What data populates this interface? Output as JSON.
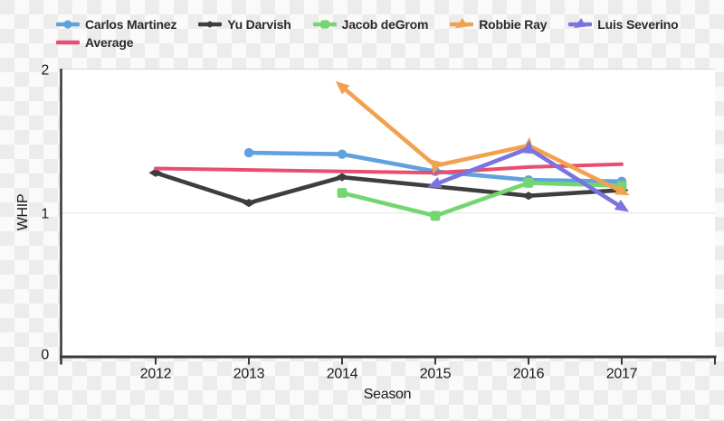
{
  "chart_data": {
    "type": "line",
    "title": "",
    "xlabel": "Season",
    "ylabel": "WHIP",
    "categories": [
      "2012",
      "2013",
      "2014",
      "2015",
      "2016",
      "2017"
    ],
    "ylim": [
      0,
      2
    ],
    "y_ticks": [
      0,
      1,
      2
    ],
    "grid": "horizontal gridline at WHIP = 1",
    "legend_position": "top-left",
    "series": [
      {
        "name": "Carlos Martinez",
        "color": "#5FA2DD",
        "marker": "circle",
        "values": [
          null,
          1.42,
          1.41,
          1.29,
          1.23,
          1.22
        ]
      },
      {
        "name": "Yu Darvish",
        "color": "#3E3E3E",
        "marker": "diamond",
        "values": [
          1.28,
          1.07,
          1.25,
          null,
          1.12,
          1.16
        ]
      },
      {
        "name": "Jacob deGrom",
        "color": "#74D671",
        "marker": "square",
        "values": [
          null,
          null,
          1.14,
          0.98,
          1.21,
          1.19
        ]
      },
      {
        "name": "Robbie Ray",
        "color": "#F2A14F",
        "marker": "arrow",
        "values": [
          null,
          null,
          1.88,
          1.33,
          1.47,
          1.15
        ]
      },
      {
        "name": "Luis Severino",
        "color": "#7A73E0",
        "marker": "arrow",
        "values": [
          null,
          null,
          null,
          1.2,
          1.45,
          1.04
        ]
      },
      {
        "name": "Average",
        "color": "#E94D6F",
        "marker": "none",
        "values": [
          1.31,
          1.3,
          1.29,
          1.28,
          1.32,
          1.34
        ]
      }
    ]
  },
  "colors": {
    "axis": "#3A3A3A",
    "grid": "#E7E7E7",
    "plot_border_top": "#DCDCDC",
    "plot_bg": "#FFFFFF",
    "text": "#1A1A1A",
    "checker_dark": "#ECECEC",
    "checker_light": "#FAFAFA"
  }
}
